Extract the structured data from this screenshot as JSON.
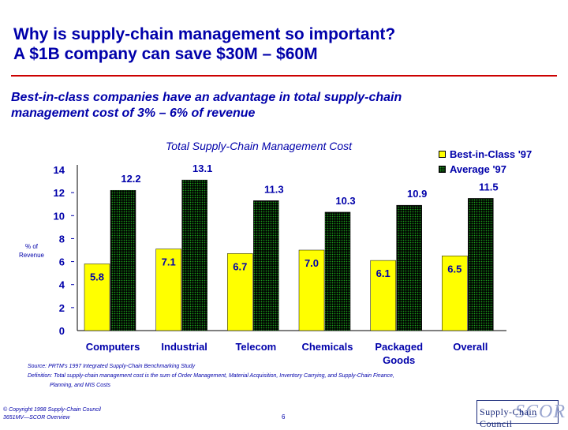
{
  "slide": {
    "title_line1": "Why is supply-chain management so important?",
    "title_line2": "A $1B company can save $30M – $60M",
    "subtitle_line1": "Best-in-class companies have an advantage in total supply-chain",
    "subtitle_line2": "management cost of 3% – 6% of revenue",
    "source": "Source:  PRTM's 1997 Integrated Supply-Chain Benchmarking Study",
    "definition_line1": "Definition:  Total supply-chain management cost is the sum of Order Management, Material Acquisition, Inventory Carrying, and Supply-Chain Finance,",
    "definition_line2": "Planning, and MIS Costs",
    "copyright_line1": "© Copyright 1998 Supply-Chain Council",
    "copyright_line2": "3651MV—SCOR Overview",
    "page_number": "6",
    "logo_text": "Supply-Chain Council",
    "logo_mark": "SCOR"
  },
  "colors": {
    "text": "#0000aa",
    "accent_rule": "#cc0000",
    "best": "#ffff00",
    "average": "#1a9c1a"
  },
  "chart_data": {
    "type": "bar",
    "title": "Total Supply-Chain Management Cost",
    "ylabel": "% of Revenue",
    "xlabel": "",
    "ylim": [
      0,
      14
    ],
    "yticks": [
      "0",
      "2",
      "4",
      "6",
      "8",
      "10",
      "12",
      "14"
    ],
    "categories": [
      "Computers",
      "Industrial",
      "Telecom",
      "Chemicals",
      "Packaged Goods",
      "Overall"
    ],
    "series": [
      {
        "name": "Best-in-Class '97",
        "values": [
          5.8,
          7.1,
          6.7,
          7.0,
          6.1,
          6.5
        ],
        "labels": [
          "5.8",
          "7.1",
          "6.7",
          "7.0",
          "6.1",
          "6.5"
        ]
      },
      {
        "name": "Average '97",
        "values": [
          12.2,
          13.1,
          11.3,
          10.3,
          10.9,
          11.5
        ],
        "labels": [
          "12.2",
          "13.1",
          "11.3",
          "10.3",
          "10.9",
          "11.5"
        ]
      }
    ],
    "legend_position": "top-right",
    "grid": false
  }
}
